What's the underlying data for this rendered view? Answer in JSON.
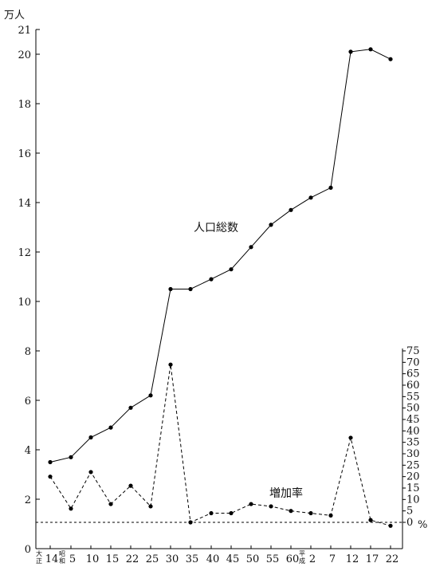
{
  "chart_data": {
    "type": "line",
    "left_axis": {
      "unit": "万人",
      "ylim": [
        0,
        21
      ],
      "ticks": [
        0,
        2,
        4,
        6,
        8,
        10,
        12,
        14,
        16,
        18,
        20,
        21
      ]
    },
    "right_axis": {
      "unit": "%",
      "ylim": [
        0,
        75
      ],
      "ticks": [
        0,
        5,
        10,
        15,
        20,
        25,
        30,
        35,
        40,
        45,
        50,
        55,
        60,
        65,
        70,
        75
      ]
    },
    "x_ticks": [
      {
        "label": "14",
        "era": "大正"
      },
      {
        "label": "5",
        "era": "昭和"
      },
      {
        "label": "10"
      },
      {
        "label": "15"
      },
      {
        "label": "22"
      },
      {
        "label": "25"
      },
      {
        "label": "30"
      },
      {
        "label": "35"
      },
      {
        "label": "40"
      },
      {
        "label": "45"
      },
      {
        "label": "50"
      },
      {
        "label": "55"
      },
      {
        "label": "60"
      },
      {
        "label": "2",
        "era": "平成"
      },
      {
        "label": "7"
      },
      {
        "label": "12"
      },
      {
        "label": "17"
      },
      {
        "label": "22"
      }
    ],
    "series": [
      {
        "name": "人口総数",
        "axis": "left",
        "style": "solid",
        "values": [
          3.5,
          3.7,
          4.5,
          4.9,
          5.7,
          6.2,
          10.5,
          10.5,
          10.9,
          11.3,
          12.2,
          13.1,
          13.7,
          14.2,
          14.6,
          20.1,
          20.2,
          19.8
        ]
      },
      {
        "name": "増加率",
        "axis": "right",
        "style": "dashed",
        "values": [
          20,
          6,
          22,
          8,
          16,
          7,
          69,
          0,
          4,
          4,
          8,
          7,
          5,
          4,
          3,
          37,
          1,
          -1.5
        ]
      }
    ]
  }
}
